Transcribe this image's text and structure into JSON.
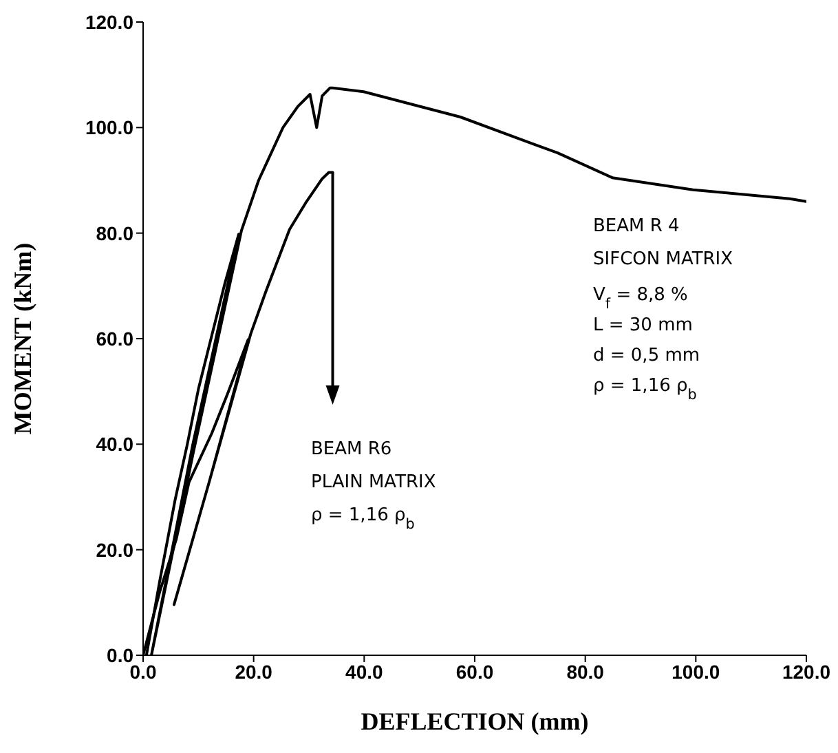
{
  "chart_data": {
    "type": "line",
    "xlabel": "DEFLECTION  (mm)",
    "ylabel": "MOMENT  (kNm)",
    "xlim": [
      0,
      120
    ],
    "ylim": [
      0,
      120
    ],
    "xticks": [
      {
        "value": 0,
        "label": "0.0"
      },
      {
        "value": 20,
        "label": "20.0"
      },
      {
        "value": 40,
        "label": "40.0"
      },
      {
        "value": 60,
        "label": "60.0"
      },
      {
        "value": 80,
        "label": "80.0"
      },
      {
        "value": 100,
        "label": "100.0"
      },
      {
        "value": 120,
        "label": "120.0"
      }
    ],
    "yticks": [
      {
        "value": 0,
        "label": "0.0"
      },
      {
        "value": 20,
        "label": "20.0"
      },
      {
        "value": 40,
        "label": "40.0"
      },
      {
        "value": 60,
        "label": "60.0"
      },
      {
        "value": 80,
        "label": "80.0"
      },
      {
        "value": 100,
        "label": "100.0"
      },
      {
        "value": 120,
        "label": "120.0"
      }
    ],
    "series": [
      {
        "color": "#000000",
        "x": [
          0.6,
          3,
          5.8,
          8,
          10,
          12.4,
          14.8,
          17.3,
          9,
          1.5,
          9,
          17.8,
          20.9,
          25.3,
          28,
          30.2,
          31.4,
          32.4,
          33.8,
          34.3,
          39.9,
          57.4,
          70.3,
          75,
          84.9,
          99.5,
          117,
          120
        ],
        "values": [
          0,
          14,
          29.5,
          40,
          50.4,
          60.5,
          70.5,
          79.8,
          40,
          0,
          38,
          80.5,
          90,
          100,
          104,
          106.3,
          100,
          106,
          107.5,
          107.5,
          106.8,
          102,
          97,
          95.2,
          90.5,
          88.2,
          86.5,
          86
        ]
      },
      {
        "color": "#000000",
        "x": [
          0,
          3,
          6,
          8.3,
          12.4,
          15.3,
          19,
          12,
          5.6,
          12,
          19.5,
          22.2,
          26.5,
          29.4,
          32.4,
          33.6,
          34.3
        ],
        "values": [
          0,
          12,
          22,
          32.8,
          42,
          49.6,
          59.8,
          33,
          9.6,
          33,
          61,
          68.9,
          80.7,
          85.7,
          90.3,
          91.5,
          91.5
        ]
      }
    ],
    "annotations": [
      "BEAM R 4\nSIFCON MATRIX\nV$_{f}$  = 8,8 %\nL  = 30 mm\nd  = 0,5 mm\nρ  = 1,16 ρ$_{b}$",
      "BEAM R6\nPLAIN MATRIX\nρ  = 1,16 ρ$_{b}$"
    ]
  }
}
